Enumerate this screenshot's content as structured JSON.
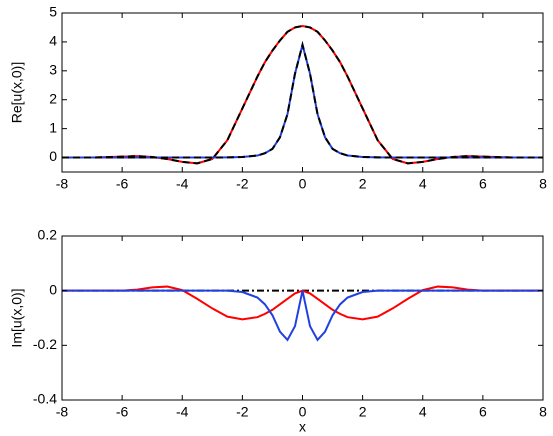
{
  "chart_data": [
    {
      "type": "line",
      "ylabel": "Re[u(x,0)]",
      "x": [
        -8,
        -7,
        -6,
        -5.5,
        -5,
        -4.5,
        -4,
        -3.5,
        -3,
        -2.5,
        -2,
        -1.5,
        -1.25,
        -1,
        -0.75,
        -0.5,
        -0.25,
        0,
        0.25,
        0.5,
        0.75,
        1,
        1.25,
        1.5,
        2,
        2.5,
        3,
        3.5,
        4,
        4.5,
        5,
        5.5,
        6,
        7,
        8
      ],
      "xlim": [
        -8,
        8
      ],
      "xticks": [
        -8,
        -6,
        -4,
        -2,
        0,
        2,
        4,
        6,
        8
      ],
      "ylim": [
        -0.5,
        5
      ],
      "yticks": [
        0,
        1,
        2,
        3,
        4,
        5
      ],
      "series": [
        {
          "color": "#ff0000",
          "style": "solid",
          "values": [
            0,
            0,
            0.03,
            0.05,
            0.02,
            -0.05,
            -0.15,
            -0.2,
            -0.05,
            0.6,
            1.7,
            2.8,
            3.3,
            3.7,
            4.05,
            4.35,
            4.5,
            4.55,
            4.5,
            4.35,
            4.05,
            3.7,
            3.3,
            2.8,
            1.7,
            0.6,
            -0.05,
            -0.2,
            -0.15,
            -0.05,
            0.02,
            0.05,
            0.03,
            0,
            0
          ]
        },
        {
          "color": "#000000",
          "style": "dashed",
          "values": [
            0,
            0,
            0.03,
            0.05,
            0.02,
            -0.05,
            -0.15,
            -0.2,
            -0.05,
            0.6,
            1.7,
            2.8,
            3.3,
            3.7,
            4.05,
            4.35,
            4.5,
            4.55,
            4.5,
            4.35,
            4.05,
            3.7,
            3.3,
            2.8,
            1.7,
            0.6,
            -0.05,
            -0.2,
            -0.15,
            -0.05,
            0.02,
            0.05,
            0.03,
            0,
            0
          ]
        },
        {
          "color": "#2040e0",
          "style": "solid",
          "values": [
            0,
            0,
            0,
            0,
            0,
            0,
            0,
            0,
            0,
            0.005,
            0.02,
            0.07,
            0.15,
            0.3,
            0.7,
            1.5,
            2.9,
            3.9,
            2.9,
            1.5,
            0.7,
            0.3,
            0.15,
            0.07,
            0.02,
            0.005,
            0,
            0,
            0,
            0,
            0,
            0,
            0,
            0,
            0
          ]
        },
        {
          "color": "#000000",
          "style": "dashed",
          "values": [
            0,
            0,
            0,
            0,
            0,
            0,
            0,
            0,
            0,
            0.005,
            0.02,
            0.07,
            0.15,
            0.3,
            0.7,
            1.5,
            2.9,
            3.9,
            2.9,
            1.5,
            0.7,
            0.3,
            0.15,
            0.07,
            0.02,
            0.005,
            0,
            0,
            0,
            0,
            0,
            0,
            0,
            0,
            0
          ]
        }
      ]
    },
    {
      "type": "line",
      "ylabel": "Im[u(x,0)]",
      "xlabel": "x",
      "x": [
        -8,
        -7,
        -6,
        -5.5,
        -5,
        -4.5,
        -4,
        -3.5,
        -3,
        -2.5,
        -2,
        -1.5,
        -1.25,
        -1,
        -0.75,
        -0.5,
        -0.25,
        0,
        0.25,
        0.5,
        0.75,
        1,
        1.25,
        1.5,
        2,
        2.5,
        3,
        3.5,
        4,
        4.5,
        5,
        5.5,
        6,
        7,
        8
      ],
      "xlim": [
        -8,
        8
      ],
      "xticks": [
        -8,
        -6,
        -4,
        -2,
        0,
        2,
        4,
        6,
        8
      ],
      "ylim": [
        -0.4,
        0.2
      ],
      "yticks": [
        -0.4,
        -0.2,
        0,
        0.2
      ],
      "series": [
        {
          "color": "#000000",
          "style": "dashdot",
          "values": [
            0,
            0,
            0,
            0,
            0,
            0,
            0,
            0,
            0,
            0,
            0,
            0,
            0,
            0,
            0,
            0,
            0,
            0,
            0,
            0,
            0,
            0,
            0,
            0,
            0,
            0,
            0,
            0,
            0,
            0,
            0,
            0,
            0,
            0,
            0
          ]
        },
        {
          "color": "#ff0000",
          "style": "solid",
          "values": [
            0,
            0,
            0,
            0.004,
            0.012,
            0.015,
            0.002,
            -0.03,
            -0.065,
            -0.095,
            -0.105,
            -0.097,
            -0.085,
            -0.07,
            -0.05,
            -0.03,
            -0.01,
            0,
            -0.01,
            -0.03,
            -0.05,
            -0.07,
            -0.085,
            -0.097,
            -0.105,
            -0.095,
            -0.065,
            -0.03,
            0.002,
            0.015,
            0.012,
            0.004,
            0,
            0,
            0
          ]
        },
        {
          "color": "#2040e0",
          "style": "solid",
          "values": [
            0,
            0,
            0,
            0,
            0,
            0,
            0,
            0,
            0,
            0,
            -0.005,
            -0.025,
            -0.05,
            -0.09,
            -0.15,
            -0.18,
            -0.13,
            0,
            -0.13,
            -0.18,
            -0.15,
            -0.09,
            -0.05,
            -0.025,
            -0.005,
            0,
            0,
            0,
            0,
            0,
            0,
            0,
            0,
            0,
            0
          ]
        }
      ]
    }
  ]
}
